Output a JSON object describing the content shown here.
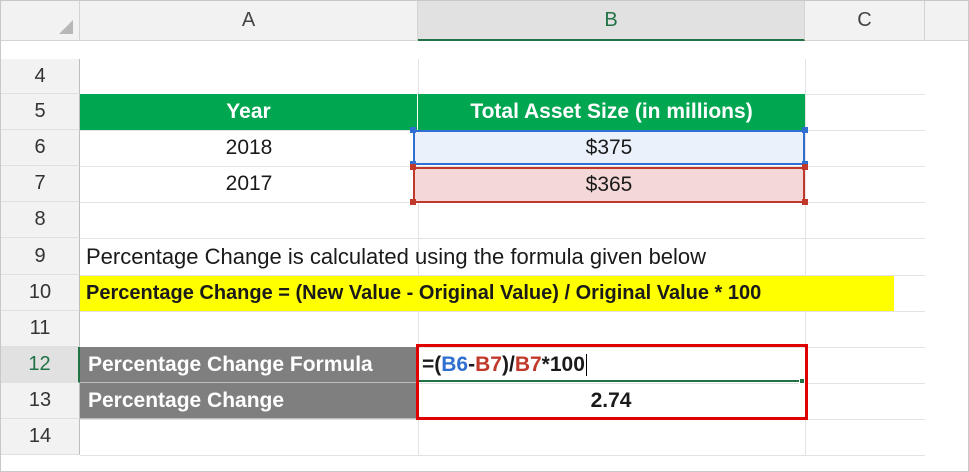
{
  "columns": [
    "A",
    "B",
    "C"
  ],
  "selected_column": "B",
  "rows": [
    "4",
    "5",
    "6",
    "7",
    "8",
    "9",
    "10",
    "11",
    "12",
    "13",
    "14"
  ],
  "selected_row": "12",
  "table": {
    "headers": [
      "Year",
      "Total Asset Size (in millions)"
    ],
    "data": [
      {
        "year": "2018",
        "value": "$375"
      },
      {
        "year": "2017",
        "value": "$365"
      }
    ]
  },
  "note": "Percentage Change is calculated using the formula given below",
  "formula_text": "Percentage Change = (New Value - Original Value) / Original Value * 100",
  "calc": {
    "formula_label": "Percentage Change Formula",
    "formula_parts": [
      "=(",
      "B6",
      "-",
      "B7",
      ")/",
      "B7",
      "*100"
    ],
    "result_label": "Percentage Change",
    "result_value": "2.74"
  },
  "colors": {
    "header_green": "#00a650",
    "highlight_yellow": "#ffff00",
    "ref_blue": "#2f6fd1",
    "ref_red": "#c0392b",
    "edit_border": "#e00000",
    "label_gray": "#7f7f7f"
  }
}
